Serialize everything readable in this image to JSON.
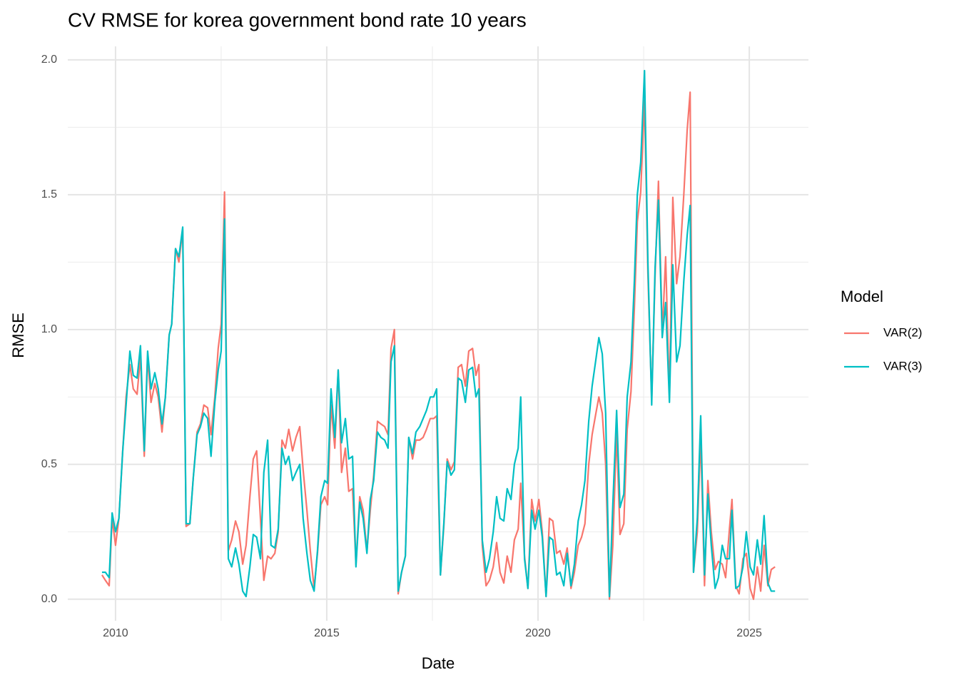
{
  "chart_data": {
    "type": "line",
    "title": "CV RMSE for korea government bond rate 10 years",
    "x_label": "Date",
    "y_label": "RMSE",
    "legend_title": "Model",
    "legend_position": "right",
    "grid": true,
    "xlim": [
      2008.87,
      2026.4
    ],
    "xticks": [
      2010,
      2015,
      2020,
      2025
    ],
    "ylim": [
      -0.08,
      2.05
    ],
    "yticks": [
      {
        "value": 0,
        "label": "0.0"
      },
      0.5,
      {
        "value": 1,
        "label": "1.0"
      },
      1.5,
      {
        "value": 2,
        "label": "2.0"
      }
    ],
    "x": [
      2009.68,
      2009.76,
      2009.85,
      2009.92,
      2010.0,
      2010.08,
      2010.17,
      2010.25,
      2010.34,
      2010.42,
      2010.51,
      2010.59,
      2010.68,
      2010.76,
      2010.84,
      2010.93,
      2011.01,
      2011.1,
      2011.18,
      2011.27,
      2011.33,
      2011.42,
      2011.5,
      2011.59,
      2011.67,
      2011.76,
      2011.84,
      2011.93,
      2012.01,
      2012.09,
      2012.18,
      2012.26,
      2012.35,
      2012.43,
      2012.5,
      2012.58,
      2012.67,
      2012.75,
      2012.84,
      2012.92,
      2013.01,
      2013.09,
      2013.18,
      2013.26,
      2013.34,
      2013.43,
      2013.51,
      2013.6,
      2013.68,
      2013.77,
      2013.85,
      2013.94,
      2014.02,
      2014.1,
      2014.19,
      2014.27,
      2014.36,
      2014.44,
      2014.53,
      2014.61,
      2014.7,
      2014.78,
      2014.86,
      2014.95,
      2015.02,
      2015.1,
      2015.19,
      2015.27,
      2015.35,
      2015.44,
      2015.52,
      2015.61,
      2015.69,
      2015.78,
      2015.86,
      2015.95,
      2016.03,
      2016.11,
      2016.2,
      2016.28,
      2016.37,
      2016.45,
      2016.52,
      2016.6,
      2016.69,
      2016.77,
      2016.86,
      2016.94,
      2017.03,
      2017.11,
      2017.2,
      2017.28,
      2017.36,
      2017.45,
      2017.53,
      2017.6,
      2017.69,
      2017.77,
      2017.85,
      2017.94,
      2018.02,
      2018.11,
      2018.19,
      2018.28,
      2018.36,
      2018.45,
      2018.53,
      2018.6,
      2018.68,
      2018.77,
      2018.85,
      2018.94,
      2019.02,
      2019.1,
      2019.19,
      2019.27,
      2019.36,
      2019.44,
      2019.53,
      2019.59,
      2019.68,
      2019.76,
      2019.85,
      2019.93,
      2020.02,
      2020.1,
      2020.19,
      2020.27,
      2020.35,
      2020.44,
      2020.52,
      2020.61,
      2020.69,
      2020.78,
      2020.86,
      2020.95,
      2021.03,
      2021.11,
      2021.2,
      2021.28,
      2021.37,
      2021.44,
      2021.52,
      2021.6,
      2021.69,
      2021.77,
      2021.86,
      2021.94,
      2022.03,
      2022.11,
      2022.2,
      2022.28,
      2022.35,
      2022.43,
      2022.52,
      2022.6,
      2022.69,
      2022.77,
      2022.85,
      2022.94,
      2023.02,
      2023.11,
      2023.19,
      2023.28,
      2023.36,
      2023.45,
      2023.53,
      2023.6,
      2023.68,
      2023.77,
      2023.85,
      2023.94,
      2024.02,
      2024.1,
      2024.19,
      2024.27,
      2024.36,
      2024.44,
      2024.53,
      2024.59,
      2024.68,
      2024.76,
      2024.85,
      2024.93,
      2025.02,
      2025.1,
      2025.19,
      2025.27,
      2025.35,
      2025.44,
      2025.52,
      2025.61
    ],
    "series": [
      {
        "name": "VAR(2)",
        "color": "#F8766D",
        "values": [
          0.09,
          0.07,
          0.05,
          0.3,
          0.2,
          0.3,
          0.55,
          0.75,
          0.87,
          0.78,
          0.76,
          0.9,
          0.53,
          0.9,
          0.73,
          0.8,
          0.75,
          0.62,
          0.75,
          0.98,
          1.02,
          1.3,
          1.25,
          1.37,
          0.27,
          0.28,
          0.45,
          0.62,
          0.65,
          0.72,
          0.71,
          0.61,
          0.75,
          0.93,
          1.02,
          1.51,
          0.18,
          0.22,
          0.29,
          0.25,
          0.13,
          0.2,
          0.38,
          0.52,
          0.55,
          0.3,
          0.07,
          0.16,
          0.15,
          0.17,
          0.25,
          0.59,
          0.56,
          0.63,
          0.55,
          0.6,
          0.64,
          0.48,
          0.33,
          0.18,
          0.04,
          0.17,
          0.35,
          0.38,
          0.35,
          0.72,
          0.56,
          0.85,
          0.47,
          0.56,
          0.4,
          0.41,
          0.13,
          0.38,
          0.33,
          0.18,
          0.33,
          0.46,
          0.66,
          0.65,
          0.64,
          0.61,
          0.93,
          1.0,
          0.02,
          0.1,
          0.16,
          0.6,
          0.52,
          0.59,
          0.59,
          0.6,
          0.63,
          0.67,
          0.67,
          0.68,
          0.09,
          0.27,
          0.52,
          0.48,
          0.51,
          0.86,
          0.87,
          0.79,
          0.92,
          0.93,
          0.83,
          0.87,
          0.2,
          0.05,
          0.07,
          0.12,
          0.21,
          0.1,
          0.06,
          0.16,
          0.1,
          0.22,
          0.26,
          0.43,
          0.16,
          0.04,
          0.37,
          0.29,
          0.37,
          0.25,
          0.01,
          0.3,
          0.29,
          0.17,
          0.18,
          0.13,
          0.19,
          0.04,
          0.1,
          0.2,
          0.23,
          0.28,
          0.5,
          0.61,
          0.69,
          0.75,
          0.69,
          0.5,
          0,
          0.2,
          0.62,
          0.24,
          0.28,
          0.63,
          0.77,
          1.08,
          1.4,
          1.51,
          1.85,
          1.21,
          0.74,
          1.2,
          1.55,
          0.98,
          1.27,
          0.75,
          1.49,
          1.17,
          1.27,
          1.5,
          1.74,
          1.88,
          0.1,
          0.25,
          0.6,
          0.05,
          0.44,
          0.25,
          0.11,
          0.14,
          0.13,
          0.08,
          0.26,
          0.37,
          0.05,
          0.02,
          0.15,
          0.17,
          0.04,
          0,
          0.12,
          0.03,
          0.2,
          0.05,
          0.11,
          0.12
        ]
      },
      {
        "name": "VAR(3)",
        "color": "#00BFC4",
        "values": [
          0.1,
          0.1,
          0.08,
          0.32,
          0.25,
          0.3,
          0.55,
          0.72,
          0.92,
          0.83,
          0.82,
          0.94,
          0.55,
          0.92,
          0.78,
          0.84,
          0.78,
          0.65,
          0.75,
          0.98,
          1.02,
          1.3,
          1.27,
          1.38,
          0.28,
          0.28,
          0.45,
          0.61,
          0.64,
          0.69,
          0.67,
          0.53,
          0.73,
          0.85,
          0.92,
          1.41,
          0.15,
          0.12,
          0.19,
          0.13,
          0.03,
          0.01,
          0.12,
          0.24,
          0.23,
          0.15,
          0.47,
          0.59,
          0.2,
          0.19,
          0.26,
          0.56,
          0.5,
          0.53,
          0.44,
          0.47,
          0.5,
          0.3,
          0.17,
          0.07,
          0.03,
          0.18,
          0.38,
          0.44,
          0.43,
          0.78,
          0.6,
          0.85,
          0.58,
          0.67,
          0.52,
          0.53,
          0.12,
          0.36,
          0.3,
          0.17,
          0.37,
          0.44,
          0.62,
          0.6,
          0.59,
          0.56,
          0.88,
          0.94,
          0.03,
          0.1,
          0.16,
          0.6,
          0.54,
          0.62,
          0.64,
          0.67,
          0.7,
          0.75,
          0.75,
          0.78,
          0.09,
          0.28,
          0.51,
          0.46,
          0.48,
          0.82,
          0.81,
          0.73,
          0.85,
          0.86,
          0.75,
          0.78,
          0.22,
          0.1,
          0.15,
          0.25,
          0.38,
          0.3,
          0.29,
          0.41,
          0.37,
          0.5,
          0.56,
          0.75,
          0.15,
          0.04,
          0.33,
          0.26,
          0.33,
          0.23,
          0.01,
          0.23,
          0.22,
          0.09,
          0.1,
          0.05,
          0.17,
          0.05,
          0.13,
          0.29,
          0.35,
          0.44,
          0.66,
          0.79,
          0.89,
          0.97,
          0.91,
          0.69,
          0.01,
          0.35,
          0.7,
          0.34,
          0.39,
          0.75,
          0.88,
          1.18,
          1.5,
          1.62,
          1.96,
          1.25,
          0.72,
          1.23,
          1.48,
          0.97,
          1.1,
          0.73,
          1.24,
          0.88,
          0.94,
          1.18,
          1.35,
          1.46,
          0.1,
          0.3,
          0.68,
          0.09,
          0.39,
          0.2,
          0.04,
          0.08,
          0.2,
          0.15,
          0.15,
          0.33,
          0.04,
          0.05,
          0.12,
          0.25,
          0.12,
          0.09,
          0.22,
          0.13,
          0.31,
          0.06,
          0.03,
          0.03
        ]
      }
    ]
  }
}
